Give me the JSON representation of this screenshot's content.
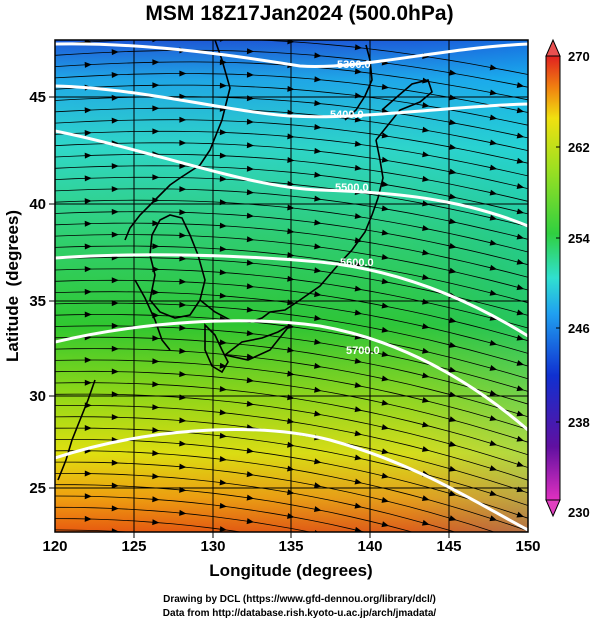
{
  "title": "MSM 18Z17Jan2024 (500.0hPa)",
  "xlabel": "Longitude (degrees)",
  "ylabel": "Latitude  (degrees)",
  "x_ticks": [
    "120",
    "125",
    "130",
    "135",
    "140",
    "145",
    "150"
  ],
  "y_ticks": [
    "25",
    "30",
    "35",
    "40",
    "45"
  ],
  "colorbar_ticks": [
    "270",
    "262",
    "254",
    "246",
    "238",
    "230"
  ],
  "contour_labels": [
    "5300.0",
    "5400.0",
    "5500.0",
    "5600.0",
    "5700.0"
  ],
  "credits": {
    "line1": "Drawing by DCL (https://www.gfd-dennou.org/library/dcl/)",
    "line2": "Data from http://database.rish.kyoto-u.ac.jp/arch/jmadata/"
  },
  "chart_data": {
    "type": "heatmap",
    "title": "MSM 18Z17Jan2024 (500.0hPa)",
    "xlabel": "Longitude (degrees)",
    "ylabel": "Latitude  (degrees)",
    "xlim": [
      120,
      150
    ],
    "ylim": [
      22.5,
      47.6
    ],
    "colorbar": {
      "range": [
        230,
        270
      ],
      "ticks": [
        270,
        262,
        254,
        246,
        238,
        230
      ]
    },
    "contours": [
      5300,
      5400,
      5500,
      5600,
      5700
    ],
    "colors": {
      "warm": "#e85a10",
      "yellow": "#e0e000",
      "green": "#30c830",
      "cyan": "#30d0e0",
      "blue": "#2040d0"
    }
  }
}
